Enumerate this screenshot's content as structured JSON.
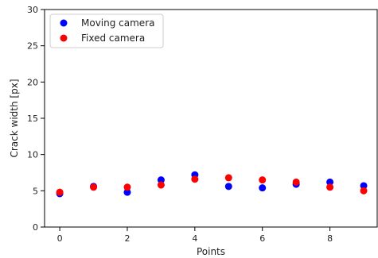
{
  "chart_data": {
    "type": "scatter",
    "title": "",
    "xlabel": "Points",
    "ylabel": "Crack width [px]",
    "xlim": [
      -0.45,
      9.4
    ],
    "ylim": [
      0,
      30
    ],
    "xticks": [
      0,
      2,
      4,
      6,
      8
    ],
    "yticks": [
      0,
      5,
      10,
      15,
      20,
      25,
      30
    ],
    "grid": false,
    "legend_position": "top-left",
    "series": [
      {
        "name": "Moving camera",
        "color": "#0000ff",
        "x": [
          0,
          1,
          2,
          3,
          4,
          5,
          6,
          7,
          8,
          9
        ],
        "y": [
          4.6,
          5.6,
          4.8,
          6.5,
          7.2,
          5.6,
          5.4,
          5.9,
          6.2,
          5.7
        ]
      },
      {
        "name": "Fixed camera",
        "color": "#ff0000",
        "x": [
          0,
          1,
          2,
          3,
          4,
          5,
          6,
          7,
          8,
          9
        ],
        "y": [
          4.8,
          5.5,
          5.5,
          5.8,
          6.6,
          6.8,
          6.5,
          6.2,
          5.5,
          5.0
        ]
      }
    ]
  }
}
